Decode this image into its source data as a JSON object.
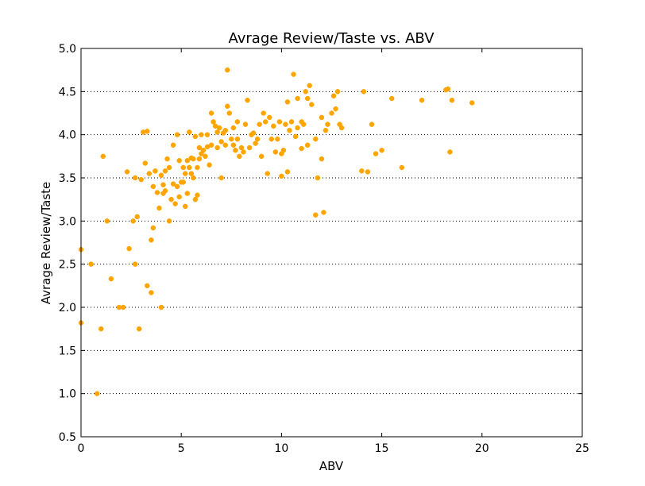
{
  "chart_data": {
    "type": "scatter",
    "title": "Avrage Review/Taste vs. ABV",
    "xlabel": "ABV",
    "ylabel": "Avrage Review/Taste",
    "xlim": [
      0,
      25
    ],
    "ylim": [
      0.5,
      5.0
    ],
    "xticks": [
      "0",
      "5",
      "10",
      "15",
      "20",
      "25"
    ],
    "yticks": [
      "0.5",
      "1.0",
      "1.5",
      "2.0",
      "2.5",
      "3.0",
      "3.5",
      "4.0",
      "4.5",
      "5.0"
    ],
    "grid": "horizontal dotted",
    "marker_color": "#ffa500",
    "points": [
      [
        0.0,
        2.67
      ],
      [
        0.0,
        1.82
      ],
      [
        0.5,
        2.5
      ],
      [
        0.8,
        1.0
      ],
      [
        1.0,
        1.75
      ],
      [
        1.1,
        3.75
      ],
      [
        1.3,
        3.0
      ],
      [
        1.5,
        2.33
      ],
      [
        1.9,
        2.0
      ],
      [
        2.1,
        2.0
      ],
      [
        2.3,
        3.57
      ],
      [
        2.4,
        2.68
      ],
      [
        2.6,
        3.0
      ],
      [
        2.7,
        2.5
      ],
      [
        2.7,
        3.5
      ],
      [
        2.8,
        3.05
      ],
      [
        2.9,
        1.75
      ],
      [
        3.0,
        3.48
      ],
      [
        3.1,
        4.03
      ],
      [
        3.2,
        3.67
      ],
      [
        3.3,
        4.04
      ],
      [
        3.3,
        2.25
      ],
      [
        3.4,
        3.55
      ],
      [
        3.5,
        2.17
      ],
      [
        3.5,
        2.78
      ],
      [
        3.6,
        2.92
      ],
      [
        3.6,
        3.4
      ],
      [
        3.7,
        3.58
      ],
      [
        3.8,
        3.33
      ],
      [
        3.9,
        3.15
      ],
      [
        4.0,
        3.53
      ],
      [
        4.0,
        2.0
      ],
      [
        4.1,
        3.32
      ],
      [
        4.1,
        3.42
      ],
      [
        4.2,
        3.35
      ],
      [
        4.2,
        3.58
      ],
      [
        4.3,
        3.72
      ],
      [
        4.4,
        3.0
      ],
      [
        4.4,
        3.62
      ],
      [
        4.5,
        3.25
      ],
      [
        4.6,
        3.88
      ],
      [
        4.6,
        3.43
      ],
      [
        4.7,
        3.2
      ],
      [
        4.8,
        3.4
      ],
      [
        4.8,
        4.0
      ],
      [
        4.9,
        3.28
      ],
      [
        4.9,
        3.7
      ],
      [
        5.0,
        3.45
      ],
      [
        5.1,
        3.62
      ],
      [
        5.1,
        3.45
      ],
      [
        5.2,
        3.17
      ],
      [
        5.2,
        3.55
      ],
      [
        5.3,
        3.32
      ],
      [
        5.3,
        3.7
      ],
      [
        5.4,
        3.62
      ],
      [
        5.4,
        4.03
      ],
      [
        5.5,
        3.55
      ],
      [
        5.5,
        3.73
      ],
      [
        5.6,
        3.5
      ],
      [
        5.6,
        3.72
      ],
      [
        5.7,
        3.25
      ],
      [
        5.7,
        3.98
      ],
      [
        5.8,
        3.3
      ],
      [
        5.8,
        3.62
      ],
      [
        5.9,
        3.72
      ],
      [
        5.9,
        3.85
      ],
      [
        6.0,
        4.0
      ],
      [
        6.0,
        3.78
      ],
      [
        6.1,
        3.82
      ],
      [
        6.2,
        3.75
      ],
      [
        6.3,
        3.86
      ],
      [
        6.3,
        4.0
      ],
      [
        6.4,
        3.65
      ],
      [
        6.5,
        4.25
      ],
      [
        6.5,
        3.88
      ],
      [
        6.6,
        4.15
      ],
      [
        6.7,
        4.1
      ],
      [
        6.8,
        3.85
      ],
      [
        6.8,
        4.03
      ],
      [
        6.9,
        4.08
      ],
      [
        7.0,
        3.5
      ],
      [
        7.0,
        3.92
      ],
      [
        7.1,
        4.02
      ],
      [
        7.2,
        3.88
      ],
      [
        7.2,
        4.05
      ],
      [
        7.3,
        4.33
      ],
      [
        7.3,
        4.75
      ],
      [
        7.4,
        4.25
      ],
      [
        7.5,
        3.95
      ],
      [
        7.6,
        3.88
      ],
      [
        7.6,
        4.08
      ],
      [
        7.7,
        3.82
      ],
      [
        7.8,
        4.15
      ],
      [
        7.8,
        3.95
      ],
      [
        7.9,
        3.75
      ],
      [
        8.0,
        3.85
      ],
      [
        8.1,
        3.8
      ],
      [
        8.2,
        4.12
      ],
      [
        8.3,
        4.4
      ],
      [
        8.4,
        3.85
      ],
      [
        8.5,
        4.0
      ],
      [
        8.6,
        4.02
      ],
      [
        8.7,
        3.9
      ],
      [
        8.8,
        3.95
      ],
      [
        8.9,
        4.12
      ],
      [
        9.0,
        3.75
      ],
      [
        9.1,
        4.25
      ],
      [
        9.2,
        4.15
      ],
      [
        9.3,
        3.55
      ],
      [
        9.4,
        4.2
      ],
      [
        9.5,
        3.95
      ],
      [
        9.6,
        4.1
      ],
      [
        9.7,
        3.8
      ],
      [
        9.8,
        3.95
      ],
      [
        9.9,
        4.15
      ],
      [
        10.0,
        3.78
      ],
      [
        10.0,
        3.52
      ],
      [
        10.1,
        3.82
      ],
      [
        10.2,
        4.12
      ],
      [
        10.3,
        3.57
      ],
      [
        10.3,
        4.38
      ],
      [
        10.4,
        4.05
      ],
      [
        10.5,
        4.15
      ],
      [
        10.6,
        4.7
      ],
      [
        10.7,
        3.98
      ],
      [
        10.8,
        4.42
      ],
      [
        10.8,
        4.08
      ],
      [
        11.0,
        4.15
      ],
      [
        11.0,
        3.84
      ],
      [
        11.1,
        4.12
      ],
      [
        11.2,
        4.5
      ],
      [
        11.3,
        4.42
      ],
      [
        11.3,
        3.88
      ],
      [
        11.4,
        4.57
      ],
      [
        11.5,
        4.35
      ],
      [
        11.7,
        3.95
      ],
      [
        11.7,
        3.07
      ],
      [
        11.8,
        3.5
      ],
      [
        12.0,
        4.2
      ],
      [
        12.0,
        3.72
      ],
      [
        12.1,
        3.1
      ],
      [
        12.2,
        4.05
      ],
      [
        12.3,
        4.12
      ],
      [
        12.5,
        4.25
      ],
      [
        12.6,
        4.45
      ],
      [
        12.7,
        4.3
      ],
      [
        12.8,
        4.5
      ],
      [
        12.9,
        4.12
      ],
      [
        13.0,
        4.08
      ],
      [
        14.0,
        3.58
      ],
      [
        14.1,
        4.5
      ],
      [
        14.3,
        3.57
      ],
      [
        14.5,
        4.12
      ],
      [
        14.7,
        3.78
      ],
      [
        15.0,
        3.82
      ],
      [
        15.5,
        4.42
      ],
      [
        16.0,
        3.62
      ],
      [
        17.0,
        4.4
      ],
      [
        18.2,
        4.52
      ],
      [
        18.3,
        4.53
      ],
      [
        18.4,
        3.8
      ],
      [
        18.5,
        4.4
      ],
      [
        19.5,
        4.37
      ]
    ]
  }
}
